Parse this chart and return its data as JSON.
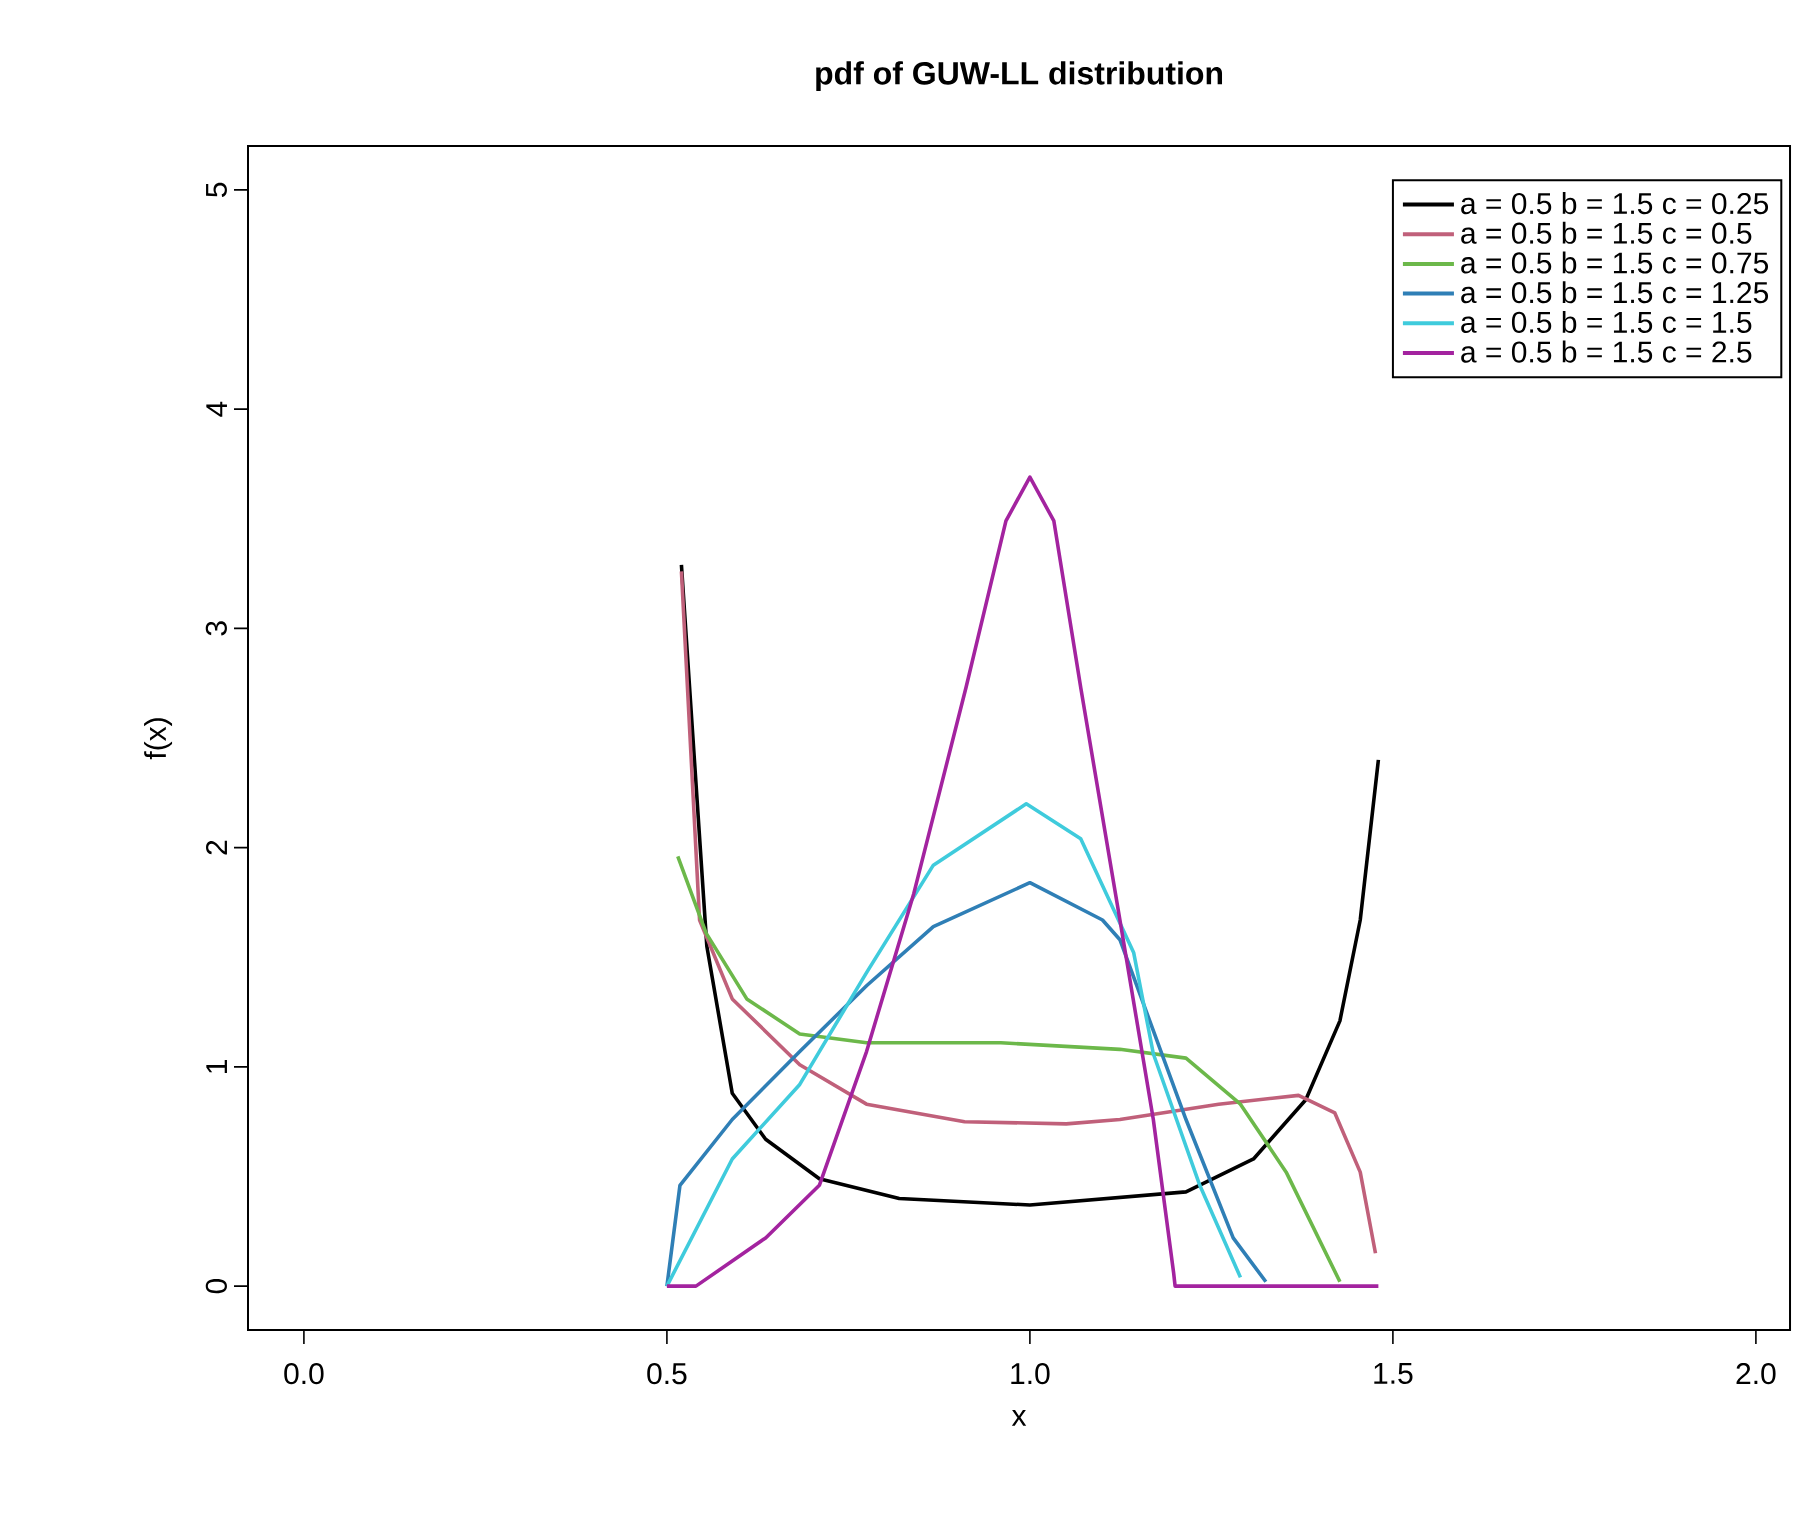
{
  "chart_data": {
    "type": "line",
    "title": "pdf of GUW-LL distribution",
    "xlabel": "x",
    "ylabel": "f(x)",
    "xlim": [
      -0.077,
      2.047
    ],
    "ylim": [
      -0.2,
      5.2
    ],
    "xticks": [
      {
        "value": 0,
        "label": "0.0"
      },
      0.5,
      {
        "value": 1,
        "label": "1.0"
      },
      1.5,
      {
        "value": 2,
        "label": "2.0"
      }
    ],
    "yticks": [
      0,
      1,
      2,
      3,
      4,
      5
    ],
    "grid": false,
    "legend": "top right",
    "marker": "none",
    "line_style": "solid",
    "series": [
      {
        "name": "a = 0.5  b = 1.5  c = 0.25",
        "color": "#000000",
        "x": [
          0.52,
          0.555,
          0.59,
          0.636,
          0.71,
          0.82,
          1.0,
          1.215,
          1.308,
          1.38,
          1.427,
          1.455,
          1.48
        ],
        "values": [
          3.29,
          1.55,
          0.88,
          0.67,
          0.49,
          0.4,
          0.37,
          0.43,
          0.58,
          0.85,
          1.21,
          1.67,
          2.4
        ]
      },
      {
        "name": "a = 0.5  b = 1.5  c = 0.5",
        "color": "#c0607a",
        "x": [
          0.52,
          0.545,
          0.59,
          0.683,
          0.775,
          0.91,
          1.05,
          1.124,
          1.26,
          1.37,
          1.42,
          1.455,
          1.476
        ],
        "values": [
          3.26,
          1.67,
          1.31,
          1.01,
          0.83,
          0.75,
          0.74,
          0.76,
          0.83,
          0.87,
          0.79,
          0.52,
          0.15
        ]
      },
      {
        "name": "a = 0.5  b = 1.5  c = 0.75",
        "color": "#6cb84a",
        "x": [
          0.515,
          0.554,
          0.61,
          0.683,
          0.775,
          0.96,
          1.124,
          1.215,
          1.29,
          1.353,
          1.427
        ],
        "values": [
          1.96,
          1.61,
          1.31,
          1.15,
          1.11,
          1.11,
          1.08,
          1.04,
          0.83,
          0.52,
          0.02
        ]
      },
      {
        "name": "a = 0.5  b = 1.5  c = 1.25",
        "color": "#2f7fb6",
        "x": [
          0.5,
          0.518,
          0.59,
          0.683,
          0.775,
          0.867,
          1.0,
          1.1,
          1.124,
          1.215,
          1.28,
          1.325
        ],
        "values": [
          0.0,
          0.46,
          0.76,
          1.07,
          1.37,
          1.64,
          1.84,
          1.67,
          1.58,
          0.76,
          0.22,
          0.02
        ]
      },
      {
        "name": "a = 0.5  b = 1.5  c = 1.5",
        "color": "#3fcbdc",
        "x": [
          0.5,
          0.59,
          0.683,
          0.775,
          0.867,
          0.995,
          1.07,
          1.143,
          1.17,
          1.234,
          1.29
        ],
        "values": [
          0.0,
          0.58,
          0.92,
          1.43,
          1.92,
          2.2,
          2.04,
          1.52,
          1.06,
          0.46,
          0.04
        ]
      },
      {
        "name": "a = 0.5  b = 1.5  c = 2.5",
        "color": "#a3239f",
        "x": [
          0.5,
          0.54,
          0.636,
          0.71,
          0.775,
          0.84,
          0.912,
          0.967,
          1.0,
          1.033,
          1.07,
          1.124,
          1.17,
          1.198,
          1.2,
          1.48
        ],
        "values": [
          0.0,
          0.0,
          0.22,
          0.46,
          1.07,
          1.79,
          2.73,
          3.49,
          3.69,
          3.49,
          2.73,
          1.67,
          0.76,
          0.06,
          0.0,
          0.0
        ]
      }
    ]
  }
}
